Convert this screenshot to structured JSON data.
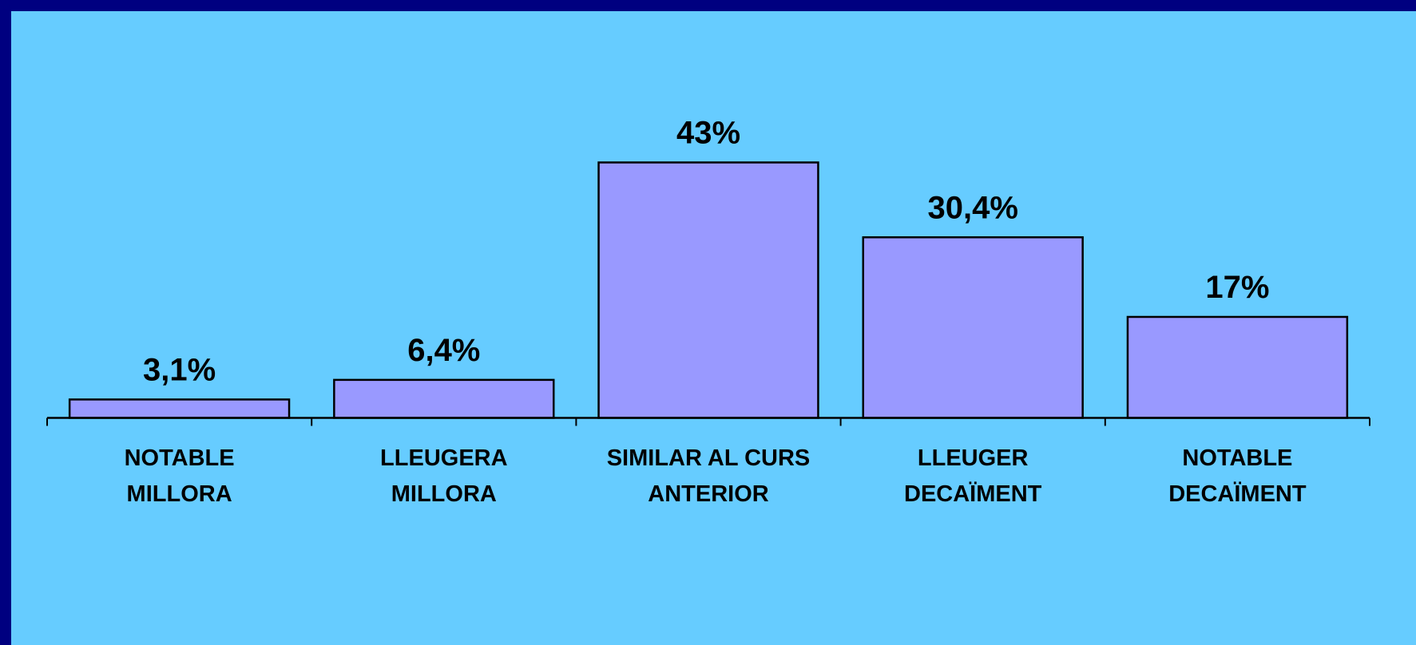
{
  "chart_data": {
    "type": "bar",
    "categories": [
      [
        "NOTABLE",
        "MILLORA"
      ],
      [
        "LLEUGERA",
        "MILLORA"
      ],
      [
        "SIMILAR AL CURS",
        "ANTERIOR"
      ],
      [
        "LLEUGER",
        "DECAÏMENT"
      ],
      [
        "NOTABLE",
        "DECAÏMENT"
      ]
    ],
    "values": [
      3.1,
      6.4,
      43,
      30.4,
      17
    ],
    "value_labels": [
      "3,1%",
      "6,4%",
      "43%",
      "30,4%",
      "17%"
    ],
    "color": "#9999ff"
  }
}
